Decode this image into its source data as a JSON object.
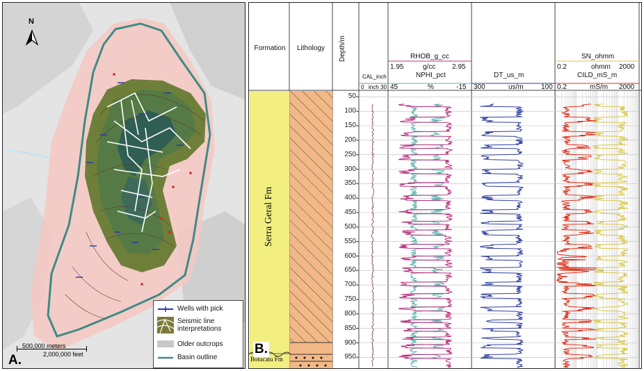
{
  "panel_a": {
    "label": "A.",
    "north": "N",
    "scale": {
      "meters": "500,000 meters",
      "feet": "2,000,000 feet"
    },
    "legend": [
      {
        "key": "wells",
        "label": "Wells with pick"
      },
      {
        "key": "seismic",
        "label": "Seismic line interpretations"
      },
      {
        "key": "outcrops",
        "label": "Older outcrops"
      },
      {
        "key": "basin",
        "label": "Basin outline"
      }
    ]
  },
  "panel_b": {
    "label": "B.",
    "columns": {
      "formation": "Formation",
      "lithology": "Lithology",
      "depth": "Depth/m"
    },
    "tracks": {
      "cal": {
        "name": "CAL_inch",
        "min": "0",
        "unit": "inch",
        "max": "30"
      },
      "rhob": {
        "name": "RHOB_g_cc",
        "min": "1.95",
        "unit": "g/cc",
        "max": "2.95"
      },
      "nphi": {
        "name": "NPHI_pct",
        "min": "45",
        "unit": "%",
        "max": "-15"
      },
      "dt": {
        "name": "DT_us_m",
        "min": "300",
        "unit": "us/m",
        "max": "100"
      },
      "sn": {
        "name": "SN_ohmm",
        "min": "0.2",
        "unit": "ohmm",
        "max": "2000"
      },
      "cild": {
        "name": "CILD_mS_m",
        "min": "0.2",
        "unit": "mS/m",
        "max": "2000"
      }
    },
    "formations": {
      "upper": "Serra Geral Fm",
      "lower": "Botucatu Fm"
    },
    "depth_ticks": [
      "50",
      "100",
      "150",
      "200",
      "250",
      "300",
      "350",
      "400",
      "450",
      "500",
      "550",
      "600",
      "650",
      "700",
      "750",
      "800",
      "850",
      "900",
      "950"
    ]
  },
  "colors": {
    "rhob": "#b8307f",
    "nphi": "#5fb5b0",
    "dt": "#2f3fa0",
    "sn": "#d8c64a",
    "cild": "#e0301c",
    "formation_fill": "#f2ee80",
    "lithology_fill": "#f2b887",
    "basin_outline": "#3f8a86",
    "buffer": "#f6c8c2"
  }
}
